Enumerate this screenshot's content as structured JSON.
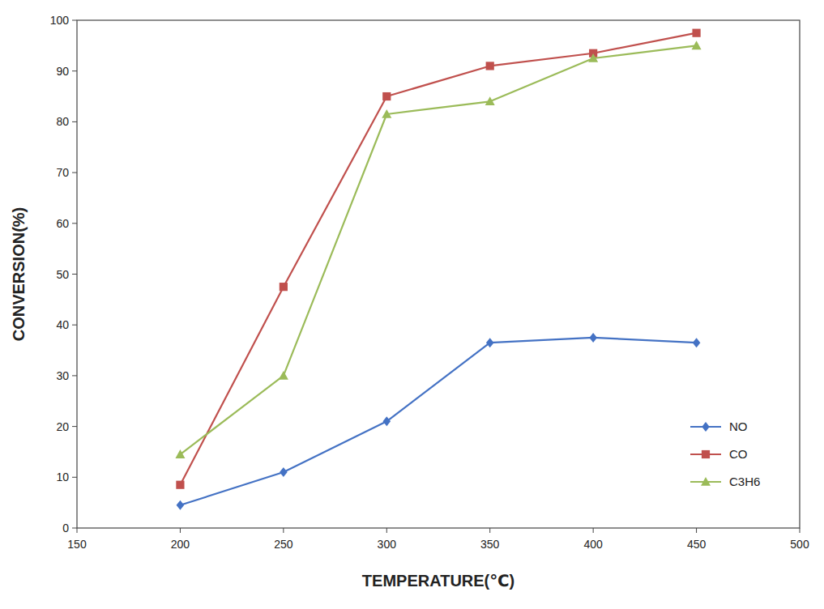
{
  "chart_data": {
    "type": "line",
    "x": [
      200,
      250,
      300,
      350,
      400,
      450
    ],
    "series": [
      {
        "name": "NO",
        "color": "#4472C4",
        "marker": "diamond",
        "values": [
          4.5,
          11,
          21,
          36.5,
          37.5,
          36.5
        ]
      },
      {
        "name": "CO",
        "color": "#C0504D",
        "marker": "square",
        "values": [
          8.5,
          47.5,
          85,
          91,
          93.5,
          97.5
        ]
      },
      {
        "name": "C3H6",
        "color": "#9BBB59",
        "marker": "triangle",
        "values": [
          14.5,
          30,
          81.5,
          84,
          92.5,
          95
        ]
      }
    ],
    "xlabel": "TEMPERATURE(℃)",
    "ylabel": "CONVERSION(%)",
    "xlim": [
      150,
      500
    ],
    "ylim": [
      0,
      100
    ],
    "xticks": [
      150,
      200,
      250,
      300,
      350,
      400,
      450,
      500
    ],
    "yticks": [
      0,
      10,
      20,
      30,
      40,
      50,
      60,
      70,
      80,
      90,
      100
    ],
    "grid": false,
    "legend": "lower right"
  }
}
